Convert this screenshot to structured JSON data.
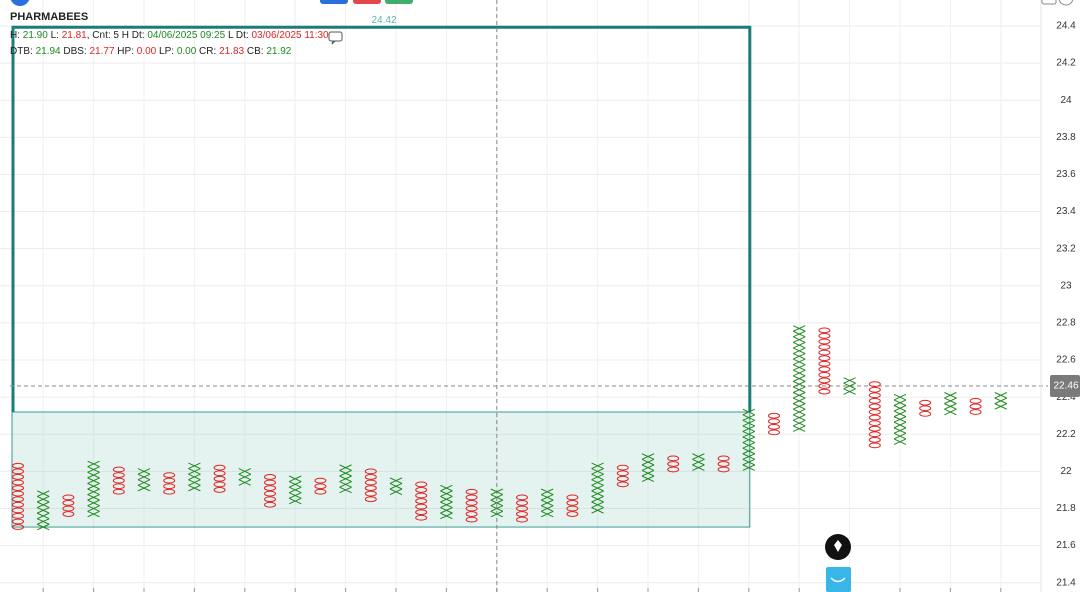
{
  "chart_data": {
    "type": "point-and-figure",
    "symbol": "PHARMABEES",
    "info_lines": [
      [
        [
          "H: ",
          "n"
        ],
        [
          "21.90",
          "g"
        ],
        [
          " L: ",
          "n"
        ],
        [
          "21.81",
          "r"
        ],
        [
          ", Cnt: 5 H Dt: ",
          "n"
        ],
        [
          "04/06/2025 09:25",
          "g"
        ],
        [
          " L Dt: ",
          "n"
        ],
        [
          "03/06/2025 11:30",
          "r"
        ]
      ],
      [
        [
          "DTB: ",
          "n"
        ],
        [
          "21.94",
          "g"
        ],
        [
          " DBS: ",
          "n"
        ],
        [
          "21.77",
          "r"
        ],
        [
          " HP: ",
          "n"
        ],
        [
          "0.00",
          "r"
        ],
        [
          " LP: ",
          "n"
        ],
        [
          "0.00",
          "g"
        ],
        [
          " CR: ",
          "n"
        ],
        [
          "21.83",
          "r"
        ],
        [
          " CB: ",
          "n"
        ],
        [
          "21.92",
          "g"
        ]
      ]
    ],
    "box_size": 0.03,
    "x_color": "#1f8a1f",
    "o_color": "#e02424",
    "columns": [
      {
        "type": "O",
        "high": 22.04,
        "low": 21.7
      },
      {
        "type": "X",
        "high": 21.88,
        "low": 21.7
      },
      {
        "type": "O",
        "high": 21.86,
        "low": 21.77
      },
      {
        "type": "X",
        "high": 22.04,
        "low": 21.77
      },
      {
        "type": "O",
        "high": 22.02,
        "low": 21.89
      },
      {
        "type": "X",
        "high": 22.0,
        "low": 21.91
      },
      {
        "type": "O",
        "high": 21.98,
        "low": 21.89
      },
      {
        "type": "X",
        "high": 22.03,
        "low": 21.91
      },
      {
        "type": "O",
        "high": 22.02,
        "low": 21.9
      },
      {
        "type": "X",
        "high": 22.0,
        "low": 21.94
      },
      {
        "type": "O",
        "high": 21.97,
        "low": 21.82
      },
      {
        "type": "X",
        "high": 21.97,
        "low": 21.84
      },
      {
        "type": "O",
        "high": 21.95,
        "low": 21.89
      },
      {
        "type": "X",
        "high": 22.02,
        "low": 21.9
      },
      {
        "type": "O",
        "high": 22.0,
        "low": 21.85
      },
      {
        "type": "X",
        "high": 21.95,
        "low": 21.89
      },
      {
        "type": "O",
        "high": 21.93,
        "low": 21.75
      },
      {
        "type": "X",
        "high": 21.91,
        "low": 21.76
      },
      {
        "type": "O",
        "high": 21.89,
        "low": 21.74
      },
      {
        "type": "X",
        "high": 21.89,
        "low": 21.77
      },
      {
        "type": "O",
        "high": 21.86,
        "low": 21.74
      },
      {
        "type": "X",
        "high": 21.89,
        "low": 21.77
      },
      {
        "type": "O",
        "high": 21.86,
        "low": 21.77
      },
      {
        "type": "X",
        "high": 22.04,
        "low": 21.79
      },
      {
        "type": "O",
        "high": 22.02,
        "low": 21.93
      },
      {
        "type": "X",
        "high": 22.09,
        "low": 21.96
      },
      {
        "type": "O",
        "high": 22.07,
        "low": 22.01
      },
      {
        "type": "X",
        "high": 22.08,
        "low": 22.02
      },
      {
        "type": "O",
        "high": 22.07,
        "low": 22.01
      },
      {
        "type": "X",
        "high": 22.32,
        "low": 22.02
      },
      {
        "type": "O",
        "high": 22.3,
        "low": 22.21
      },
      {
        "type": "X",
        "high": 22.78,
        "low": 22.23
      },
      {
        "type": "O",
        "high": 22.76,
        "low": 22.43
      },
      {
        "type": "X",
        "high": 22.49,
        "low": 22.43
      },
      {
        "type": "O",
        "high": 22.47,
        "low": 22.14
      },
      {
        "type": "X",
        "high": 22.39,
        "low": 22.16
      },
      {
        "type": "O",
        "high": 22.37,
        "low": 22.31
      },
      {
        "type": "X",
        "high": 22.41,
        "low": 22.32
      },
      {
        "type": "O",
        "high": 22.38,
        "low": 22.32
      },
      {
        "type": "X",
        "high": 22.41,
        "low": 22.35
      }
    ],
    "ylim": [
      21.35,
      24.54
    ],
    "yticks": [
      21.4,
      21.6,
      21.8,
      22,
      22.2,
      22.4,
      22.6,
      22.8,
      23,
      23.2,
      23.4,
      23.6,
      23.8,
      24,
      24.2,
      24.4
    ],
    "annotation_line": 24.42,
    "crosshair_price": 22.46,
    "grid": true
  }
}
